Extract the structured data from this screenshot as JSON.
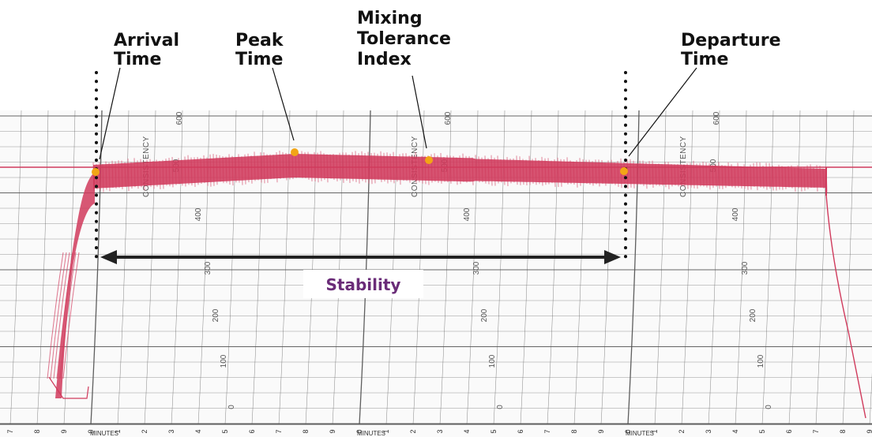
{
  "labels": {
    "arrival": [
      "Arrival",
      "Time"
    ],
    "peak": [
      "Peak",
      "Time"
    ],
    "mixing": [
      "Mixing",
      "Tolerance",
      "Index"
    ],
    "departure": [
      "Departure",
      "Time"
    ],
    "stability": "Stability"
  },
  "chart": {
    "consistency_label": "CONSISTENCY",
    "minutes_label": "MINUTES",
    "scale_values": [
      "600",
      "500",
      "400",
      "300",
      "200",
      "100",
      "0"
    ],
    "x_ticks": [
      "7",
      "8",
      "9",
      "0",
      "1",
      "2",
      "3",
      "4",
      "5",
      "6",
      "7",
      "8",
      "9",
      "0",
      "1",
      "2",
      "3",
      "4",
      "5",
      "6",
      "7",
      "8",
      "9",
      "0",
      "1",
      "2",
      "3",
      "4",
      "5",
      "6",
      "7",
      "8",
      "9",
      "0"
    ]
  },
  "colors": {
    "trace": "#d03a5c",
    "marker": "#f2a516",
    "grid": "#555555",
    "stability_text": "#6a2c78",
    "arrow": "#222222"
  }
}
